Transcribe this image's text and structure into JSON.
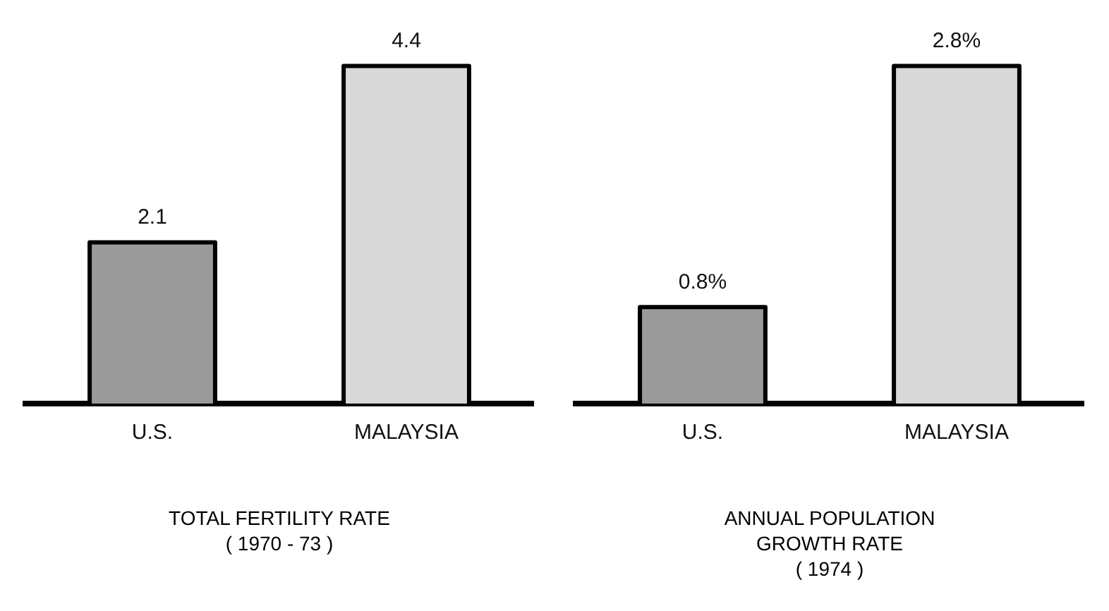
{
  "chart_data": [
    {
      "type": "bar",
      "title": "TOTAL FERTILITY RATE\n( 1970 - 73 )",
      "categories": [
        "U.S.",
        "MALAYSIA"
      ],
      "values": [
        2.1,
        4.4
      ],
      "colors": [
        "#9a9a9a",
        "#d8d8d8"
      ],
      "data_labels": true,
      "tick_labels": "x"
    },
    {
      "type": "bar",
      "title": "ANNUAL POPULATION\nGROWTH RATE\n( 1974 )",
      "categories": [
        "U.S.",
        "MALAYSIA"
      ],
      "values": [
        0.8,
        2.8
      ],
      "colors": [
        "#9a9a9a",
        "#d8d8d8"
      ],
      "value_labels": [
        "0.8%",
        "2.8%"
      ],
      "tick_labels": "x"
    }
  ]
}
